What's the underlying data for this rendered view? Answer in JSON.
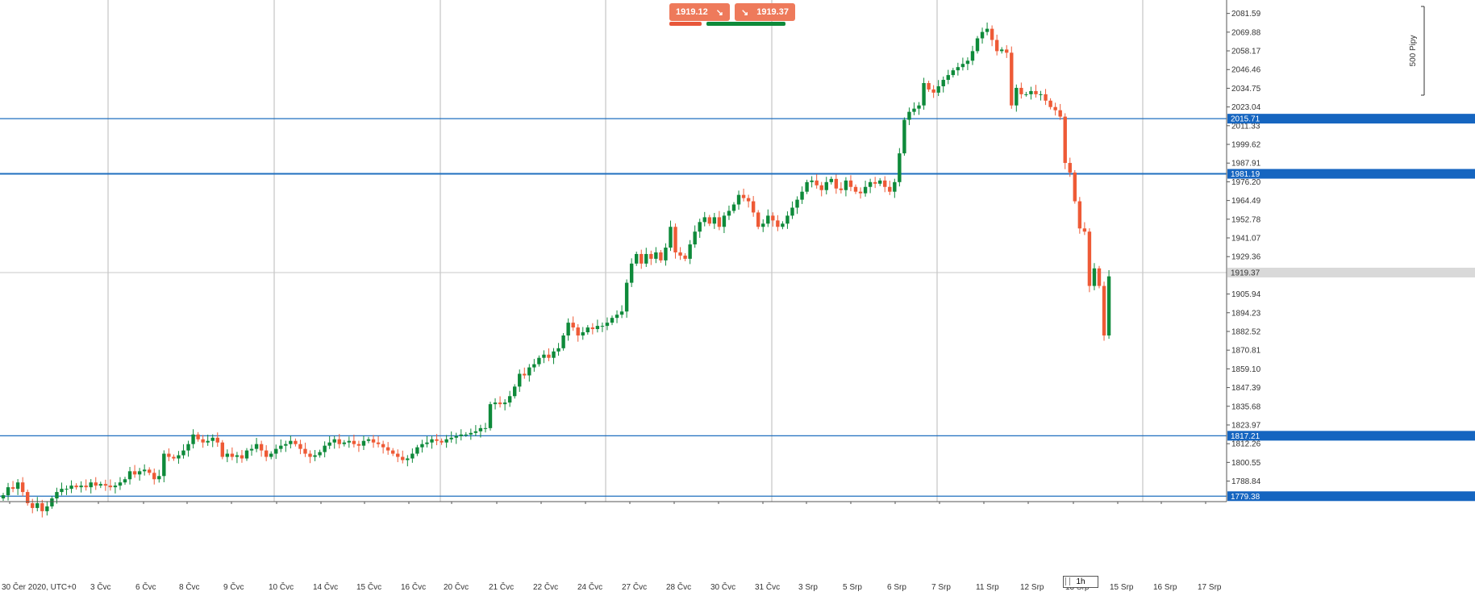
{
  "trade": {
    "sell_price": "1919.12",
    "buy_price": "1919.37",
    "sell_icon": "arrow-down-right-icon",
    "buy_icon": "arrow-down-right-icon"
  },
  "timeframe": "1h",
  "scale_label": "500 Pipy",
  "colors": {
    "up": "#0e8a3a",
    "down": "#ee5a36",
    "line": "#1f6fbf",
    "current": "#c8c8c8"
  },
  "chart_data": {
    "type": "candlestick",
    "ylim": [
      1777,
      2090
    ],
    "y_ticks": [
      2081.59,
      2069.88,
      2058.17,
      2046.46,
      2034.75,
      2023.04,
      2011.33,
      1999.62,
      1987.91,
      1976.2,
      1964.49,
      1952.78,
      1941.07,
      1929.36,
      1905.94,
      1894.23,
      1882.52,
      1870.81,
      1859.1,
      1847.39,
      1835.68,
      1823.97,
      1812.26,
      1800.55,
      1788.84
    ],
    "x_labels": [
      "30 Čer 2020, UTC+0",
      "3 Čvc",
      "6 Čvc",
      "8 Čvc",
      "9 Čvc",
      "10 Čvc",
      "14 Čvc",
      "15 Čvc",
      "16 Čvc",
      "20 Čvc",
      "21 Čvc",
      "22 Čvc",
      "24 Čvc",
      "27 Čvc",
      "28 Čvc",
      "30 Čvc",
      "31 Čvc",
      "3 Srp",
      "5 Srp",
      "6 Srp",
      "7 Srp",
      "11 Srp",
      "12 Srp",
      "13 Srp",
      "15 Srp",
      "16 Srp",
      "17 Srp"
    ],
    "horizontal_lines": [
      2015.71,
      1981.19,
      1817.21,
      1779.38
    ],
    "horizontal_line_labels": [
      "2015.71",
      "1981.19",
      "1817.21",
      "1779.38"
    ],
    "current_price": 1919.37,
    "current_price_label": "1919.37",
    "closes": [
      1780,
      1785,
      1784,
      1788,
      1782,
      1775,
      1772,
      1775,
      1770,
      1773,
      1778,
      1782,
      1784,
      1784,
      1786,
      1785,
      1786,
      1785,
      1788,
      1786,
      1787,
      1786,
      1785,
      1786,
      1788,
      1790,
      1795,
      1793,
      1795,
      1796,
      1794,
      1790,
      1792,
      1806,
      1804,
      1803,
      1805,
      1808,
      1812,
      1818,
      1815,
      1813,
      1814,
      1816,
      1813,
      1804,
      1806,
      1804,
      1805,
      1803,
      1808,
      1809,
      1812,
      1808,
      1804,
      1806,
      1809,
      1811,
      1812,
      1814,
      1812,
      1809,
      1806,
      1804,
      1805,
      1807,
      1811,
      1813,
      1815,
      1812,
      1813,
      1814,
      1812,
      1811,
      1814,
      1815,
      1813,
      1812,
      1810,
      1808,
      1806,
      1804,
      1802,
      1803,
      1806,
      1810,
      1812,
      1813,
      1815,
      1814,
      1813,
      1815,
      1816,
      1817,
      1818,
      1818,
      1819,
      1820,
      1822,
      1822,
      1837,
      1838,
      1837,
      1838,
      1842,
      1848,
      1856,
      1855,
      1860,
      1862,
      1866,
      1868,
      1866,
      1870,
      1872,
      1880,
      1888,
      1885,
      1880,
      1882,
      1885,
      1884,
      1886,
      1886,
      1888,
      1891,
      1893,
      1895,
      1913,
      1925,
      1931,
      1925,
      1931,
      1928,
      1932,
      1927,
      1935,
      1948,
      1932,
      1930,
      1928,
      1937,
      1945,
      1951,
      1954,
      1950,
      1954,
      1948,
      1955,
      1958,
      1962,
      1968,
      1966,
      1964,
      1957,
      1948,
      1950,
      1955,
      1952,
      1948,
      1950,
      1955,
      1960,
      1965,
      1970,
      1976,
      1977,
      1974,
      1971,
      1976,
      1978,
      1972,
      1971,
      1977,
      1973,
      1970,
      1969,
      1973,
      1976,
      1975,
      1977,
      1973,
      1970,
      1976,
      1994,
      2015,
      2020,
      2022,
      2024,
      2038,
      2034,
      2032,
      2036,
      2040,
      2043,
      2046,
      2048,
      2050,
      2052,
      2058,
      2066,
      2070,
      2072,
      2065,
      2058,
      2059,
      2057,
      2024,
      2035,
      2031,
      2031,
      2033,
      2031,
      2031,
      2027,
      2023,
      2021,
      2017,
      1988,
      1982,
      1964,
      1947,
      1945,
      1911,
      1922,
      1911,
      1880,
      1917
    ]
  }
}
